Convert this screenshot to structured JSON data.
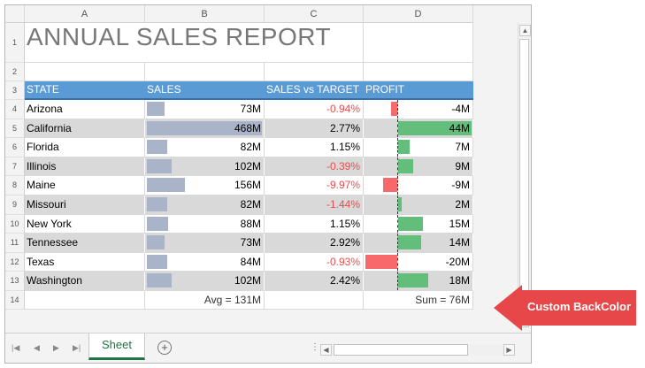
{
  "columns": [
    "A",
    "B",
    "C",
    "D"
  ],
  "row_numbers": [
    "1",
    "2",
    "3",
    "4",
    "5",
    "6",
    "7",
    "8",
    "9",
    "10",
    "11",
    "12",
    "13",
    "14"
  ],
  "title": "ANNUAL SALES REPORT",
  "headers": {
    "state": "STATE",
    "sales": "SALES",
    "vs_target": "SALES vs TARGET",
    "profit": "PROFIT"
  },
  "rows": [
    {
      "state": "Arizona",
      "sales": "73M",
      "sales_value": 73,
      "vs_target": "-0.94%",
      "negative": true,
      "profit": "-4M",
      "profit_value": -4
    },
    {
      "state": "California",
      "sales": "468M",
      "sales_value": 468,
      "vs_target": "2.77%",
      "negative": false,
      "profit": "44M",
      "profit_value": 44
    },
    {
      "state": "Florida",
      "sales": "82M",
      "sales_value": 82,
      "vs_target": "1.15%",
      "negative": false,
      "profit": "7M",
      "profit_value": 7
    },
    {
      "state": "Illinois",
      "sales": "102M",
      "sales_value": 102,
      "vs_target": "-0.39%",
      "negative": true,
      "profit": "9M",
      "profit_value": 9
    },
    {
      "state": "Maine",
      "sales": "156M",
      "sales_value": 156,
      "vs_target": "-9.97%",
      "negative": true,
      "profit": "-9M",
      "profit_value": -9
    },
    {
      "state": "Missouri",
      "sales": "82M",
      "sales_value": 82,
      "vs_target": "-1.44%",
      "negative": true,
      "profit": "2M",
      "profit_value": 2
    },
    {
      "state": "New York",
      "sales": "88M",
      "sales_value": 88,
      "vs_target": "1.15%",
      "negative": false,
      "profit": "15M",
      "profit_value": 15
    },
    {
      "state": "Tennessee",
      "sales": "73M",
      "sales_value": 73,
      "vs_target": "2.92%",
      "negative": false,
      "profit": "14M",
      "profit_value": 14
    },
    {
      "state": "Texas",
      "sales": "84M",
      "sales_value": 84,
      "vs_target": "-0.93%",
      "negative": true,
      "profit": "-20M",
      "profit_value": -20
    },
    {
      "state": "Washington",
      "sales": "102M",
      "sales_value": 102,
      "vs_target": "2.42%",
      "negative": false,
      "profit": "18M",
      "profit_value": 18
    }
  ],
  "summary": {
    "avg": "Avg = 131M",
    "sum": "Sum = 76M"
  },
  "sheet_tab": "Sheet",
  "callout": "Custom BackColor",
  "colors": {
    "header": "#5b9bd5",
    "band": "#d9d9d9",
    "sales_bar": "#aab4c8",
    "profit_pos": "#63be7b",
    "profit_neg": "#f8696b",
    "negative_text": "#e84d4d",
    "callout": "#e8474a",
    "sheet_tab": "#217346"
  },
  "icons": {
    "first": "first-sheet-icon",
    "prev": "prev-sheet-icon",
    "next": "next-sheet-icon",
    "last": "last-sheet-icon",
    "add": "add-sheet-icon"
  }
}
